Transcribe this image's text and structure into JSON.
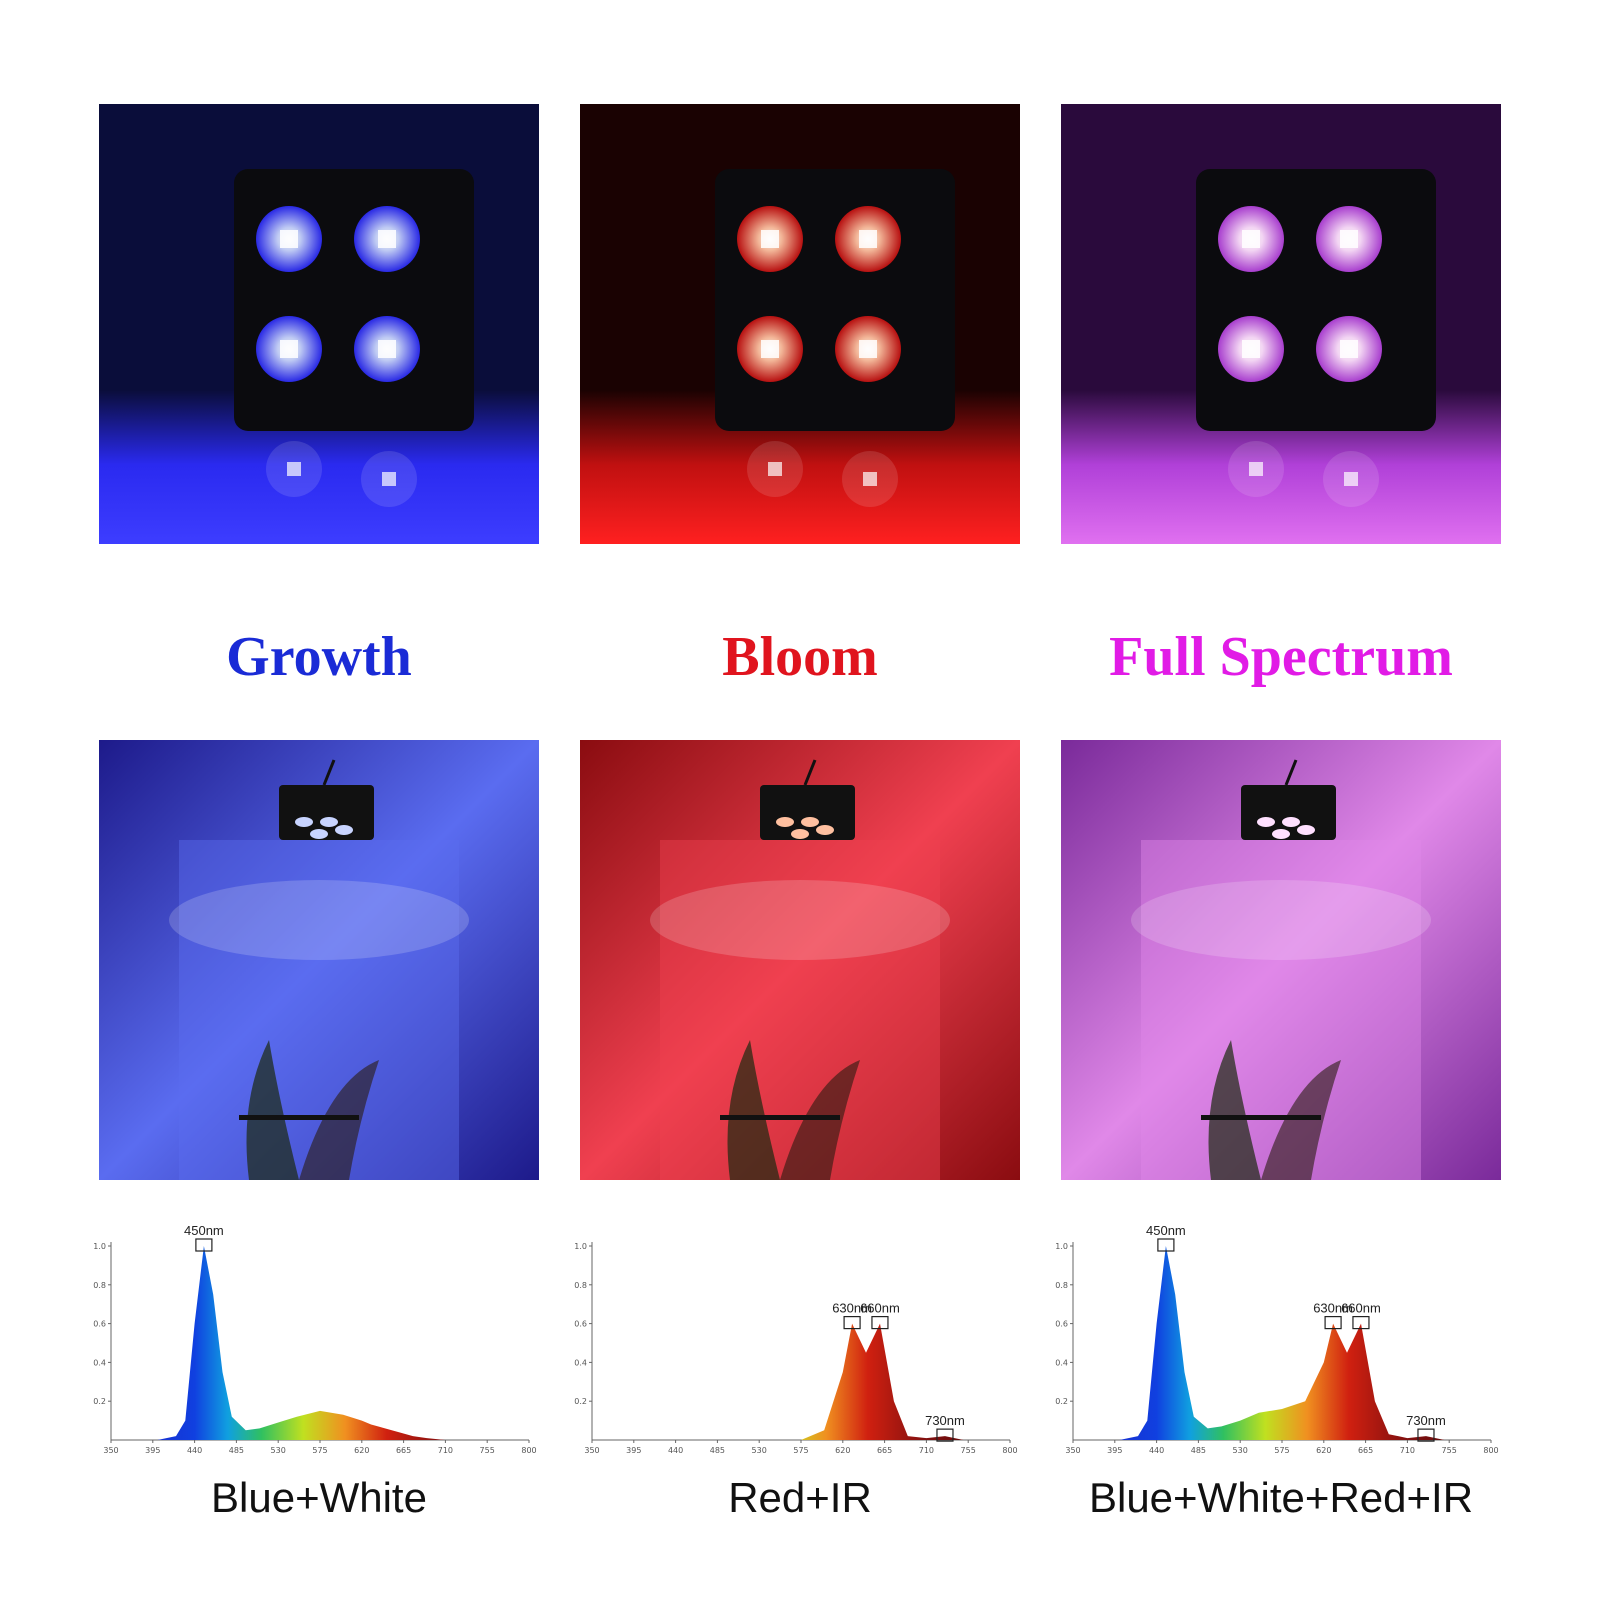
{
  "chart_data": [
    {
      "type": "area",
      "title": "Growth",
      "subtitle": "Blue+White",
      "x": [
        350,
        400,
        420,
        430,
        440,
        450,
        460,
        470,
        480,
        495,
        510,
        530,
        550,
        575,
        600,
        620,
        630,
        645,
        660,
        675,
        690,
        710,
        730,
        750,
        800
      ],
      "values": [
        0,
        0,
        0.02,
        0.1,
        0.6,
        1.0,
        0.75,
        0.35,
        0.12,
        0.05,
        0.06,
        0.09,
        0.12,
        0.15,
        0.13,
        0.1,
        0.08,
        0.06,
        0.04,
        0.02,
        0.01,
        0,
        0,
        0,
        0
      ],
      "xlim": [
        350,
        800
      ],
      "ylim": [
        0,
        1
      ],
      "xticks": [
        350,
        395,
        440,
        485,
        530,
        575,
        620,
        665,
        710,
        755,
        800
      ],
      "yticks": [
        0.2,
        0.4,
        0.6,
        0.8,
        {
          "value": 1,
          "label": "1.0"
        }
      ],
      "annotations": [
        {
          "text": "450nm",
          "x": 450,
          "y": 1.0
        }
      ]
    },
    {
      "type": "area",
      "title": "Bloom",
      "subtitle": "Red+IR",
      "x": [
        350,
        400,
        420,
        430,
        440,
        450,
        460,
        470,
        480,
        495,
        510,
        530,
        550,
        575,
        600,
        620,
        630,
        645,
        660,
        675,
        690,
        710,
        730,
        750,
        800
      ],
      "values": [
        0,
        0,
        0,
        0,
        0,
        0,
        0,
        0,
        0,
        0,
        0,
        0,
        0,
        0,
        0.05,
        0.35,
        0.6,
        0.45,
        0.6,
        0.2,
        0.02,
        0.01,
        0.02,
        0,
        0
      ],
      "xlim": [
        350,
        800
      ],
      "ylim": [
        0,
        1
      ],
      "xticks": [
        350,
        395,
        440,
        485,
        530,
        575,
        620,
        665,
        710,
        755,
        800
      ],
      "yticks": [
        0.2,
        0.4,
        0.6,
        0.8,
        {
          "value": 1,
          "label": "1.0"
        }
      ],
      "annotations": [
        {
          "text": "630nm",
          "x": 630,
          "y": 0.6
        },
        {
          "text": "660nm",
          "x": 660,
          "y": 0.6
        },
        {
          "text": "730nm",
          "x": 730,
          "y": 0.02
        }
      ]
    },
    {
      "type": "area",
      "title": "Full Spectrum",
      "subtitle": "Blue+White+Red+IR",
      "x": [
        350,
        400,
        420,
        430,
        440,
        450,
        460,
        470,
        480,
        495,
        510,
        530,
        550,
        575,
        600,
        620,
        630,
        645,
        660,
        675,
        690,
        710,
        730,
        750,
        800
      ],
      "values": [
        0,
        0,
        0.02,
        0.1,
        0.6,
        1.0,
        0.75,
        0.35,
        0.12,
        0.06,
        0.07,
        0.1,
        0.14,
        0.16,
        0.2,
        0.4,
        0.6,
        0.45,
        0.6,
        0.2,
        0.03,
        0.01,
        0.02,
        0,
        0
      ],
      "xlim": [
        350,
        800
      ],
      "ylim": [
        0,
        1
      ],
      "xticks": [
        350,
        395,
        440,
        485,
        530,
        575,
        620,
        665,
        710,
        755,
        800
      ],
      "yticks": [
        0.2,
        0.4,
        0.6,
        0.8,
        {
          "value": 1,
          "label": "1.0"
        }
      ],
      "annotations": [
        {
          "text": "450nm",
          "x": 450,
          "y": 1.0
        },
        {
          "text": "630nm",
          "x": 630,
          "y": 0.6
        },
        {
          "text": "660nm",
          "x": 660,
          "y": 0.6
        },
        {
          "text": "730nm",
          "x": 730,
          "y": 0.02
        }
      ]
    }
  ]
}
